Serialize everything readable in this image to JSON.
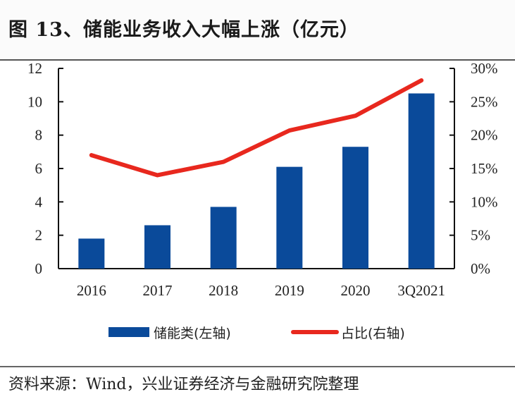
{
  "title": "图 13、储能业务收入大幅上涨（亿元）",
  "source": "资料来源：Wind，兴业证券经济与金融研究院整理",
  "colors": {
    "bar": "#0a4a9a",
    "line": "#e8281e",
    "axis": "#111111"
  },
  "chart_data": {
    "type": "bar+line",
    "title": "图 13、储能业务收入大幅上涨（亿元）",
    "categories": [
      "2016",
      "2017",
      "2018",
      "2019",
      "2020",
      "3Q2021"
    ],
    "series": [
      {
        "name": "储能类(左轴)",
        "type": "bar",
        "axis": "left",
        "values": [
          1.8,
          2.6,
          3.7,
          6.1,
          7.3,
          10.5
        ]
      },
      {
        "name": "占比(右轴)",
        "type": "line",
        "axis": "right",
        "values": [
          17.0,
          14.0,
          16.0,
          20.7,
          22.9,
          28.2
        ]
      }
    ],
    "left_axis": {
      "ylim": [
        0,
        12
      ],
      "ticks": [
        "0",
        "2",
        "4",
        "6",
        "8",
        "10",
        "12"
      ]
    },
    "right_axis": {
      "ylim": [
        0,
        30
      ],
      "ticks": [
        "0%",
        "5%",
        "10%",
        "15%",
        "20%",
        "25%",
        "30%"
      ]
    },
    "legend": {
      "placement": "bottom",
      "entries": [
        "储能类(左轴)",
        "占比(右轴)"
      ]
    },
    "grid": false
  }
}
